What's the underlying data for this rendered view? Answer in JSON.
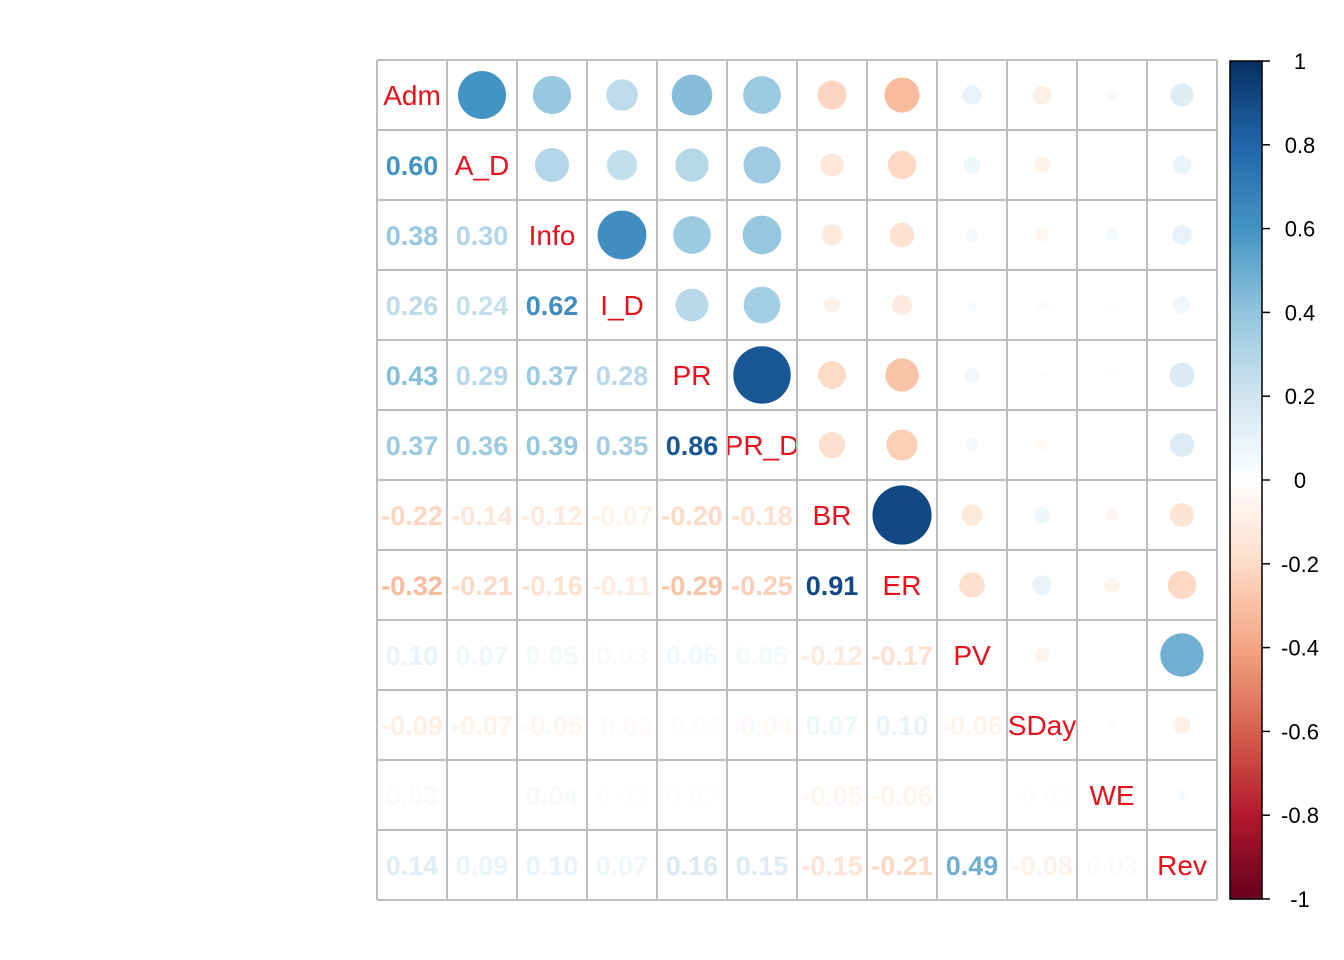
{
  "chart_data": {
    "type": "heatmap",
    "variables": [
      "Adm",
      "A_D",
      "Info",
      "I_D",
      "PR",
      "PR_D",
      "BR",
      "ER",
      "PV",
      "SDay",
      "WE",
      "Rev"
    ],
    "lower_triangle_values": [
      [],
      [
        0.6
      ],
      [
        0.38,
        0.3
      ],
      [
        0.26,
        0.24,
        0.62
      ],
      [
        0.43,
        0.29,
        0.37,
        0.28
      ],
      [
        0.37,
        0.36,
        0.39,
        0.35,
        0.86
      ],
      [
        -0.22,
        -0.14,
        -0.12,
        -0.07,
        -0.2,
        -0.18
      ],
      [
        -0.32,
        -0.21,
        -0.16,
        -0.11,
        -0.29,
        -0.25,
        0.91
      ],
      [
        0.1,
        0.07,
        0.05,
        0.03,
        0.06,
        0.05,
        -0.12,
        -0.17
      ],
      [
        -0.09,
        -0.07,
        -0.05,
        -0.03,
        -0.02,
        -0.04,
        0.07,
        0.1,
        -0.06
      ],
      [
        0.03,
        0.01,
        0.04,
        0.02,
        0.02,
        0.01,
        -0.05,
        -0.06,
        0.01,
        -0.02
      ],
      [
        0.14,
        0.09,
        0.1,
        0.07,
        0.16,
        0.15,
        -0.15,
        -0.21,
        0.49,
        -0.08,
        0.03
      ]
    ],
    "lower_display": "number",
    "upper_display": "circle",
    "diagonal_display": "label",
    "colorbar": {
      "range": [
        -1,
        1
      ],
      "ticks": [
        "1",
        "0.8",
        "0.6",
        "0.4",
        "0.2",
        "0",
        "-0.2",
        "-0.4",
        "-0.6",
        "-0.8",
        "-1"
      ],
      "palette": [
        "#67001F",
        "#B2182B",
        "#D6604D",
        "#F4A582",
        "#FDDBC7",
        "#FFFFFF",
        "#D1E5F0",
        "#92C5DE",
        "#4393C3",
        "#2166AC",
        "#053061"
      ]
    },
    "label_color": "#E8101A",
    "grid_color": "#BEBEBE"
  }
}
